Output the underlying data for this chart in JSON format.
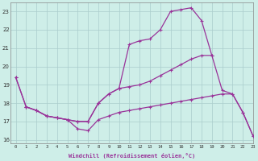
{
  "xlabel": "Windchill (Refroidissement éolien,°C)",
  "xlim": [
    -0.5,
    23
  ],
  "ylim": [
    15.8,
    23.5
  ],
  "yticks": [
    16,
    17,
    18,
    19,
    20,
    21,
    22,
    23
  ],
  "xticks": [
    0,
    1,
    2,
    3,
    4,
    5,
    6,
    7,
    8,
    9,
    10,
    11,
    12,
    13,
    14,
    15,
    16,
    17,
    18,
    19,
    20,
    21,
    22,
    23
  ],
  "bg_color": "#ceeee8",
  "grid_color": "#aacccc",
  "line_color": "#993399",
  "line_width": 0.9,
  "marker": "+",
  "marker_size": 3.5,
  "marker_lw": 0.8,
  "series": [
    [
      19.4,
      17.8,
      17.6,
      17.3,
      17.2,
      17.1,
      17.0,
      17.0,
      18.0,
      18.5,
      18.8,
      21.2,
      21.4,
      21.5,
      22.0,
      23.0,
      23.1,
      23.2,
      22.5,
      20.6,
      null,
      null,
      null,
      null
    ],
    [
      19.4,
      17.8,
      17.6,
      17.3,
      17.2,
      17.1,
      17.0,
      17.0,
      18.0,
      18.5,
      18.8,
      18.9,
      19.0,
      19.2,
      19.5,
      19.8,
      20.1,
      20.4,
      20.6,
      20.6,
      18.7,
      18.5,
      17.5,
      16.2
    ],
    [
      null,
      17.8,
      17.6,
      17.3,
      17.2,
      17.1,
      16.6,
      16.5,
      17.1,
      17.3,
      17.5,
      17.6,
      17.7,
      17.8,
      17.9,
      18.0,
      18.1,
      18.2,
      18.3,
      18.4,
      18.5,
      18.5,
      17.5,
      16.2
    ]
  ]
}
